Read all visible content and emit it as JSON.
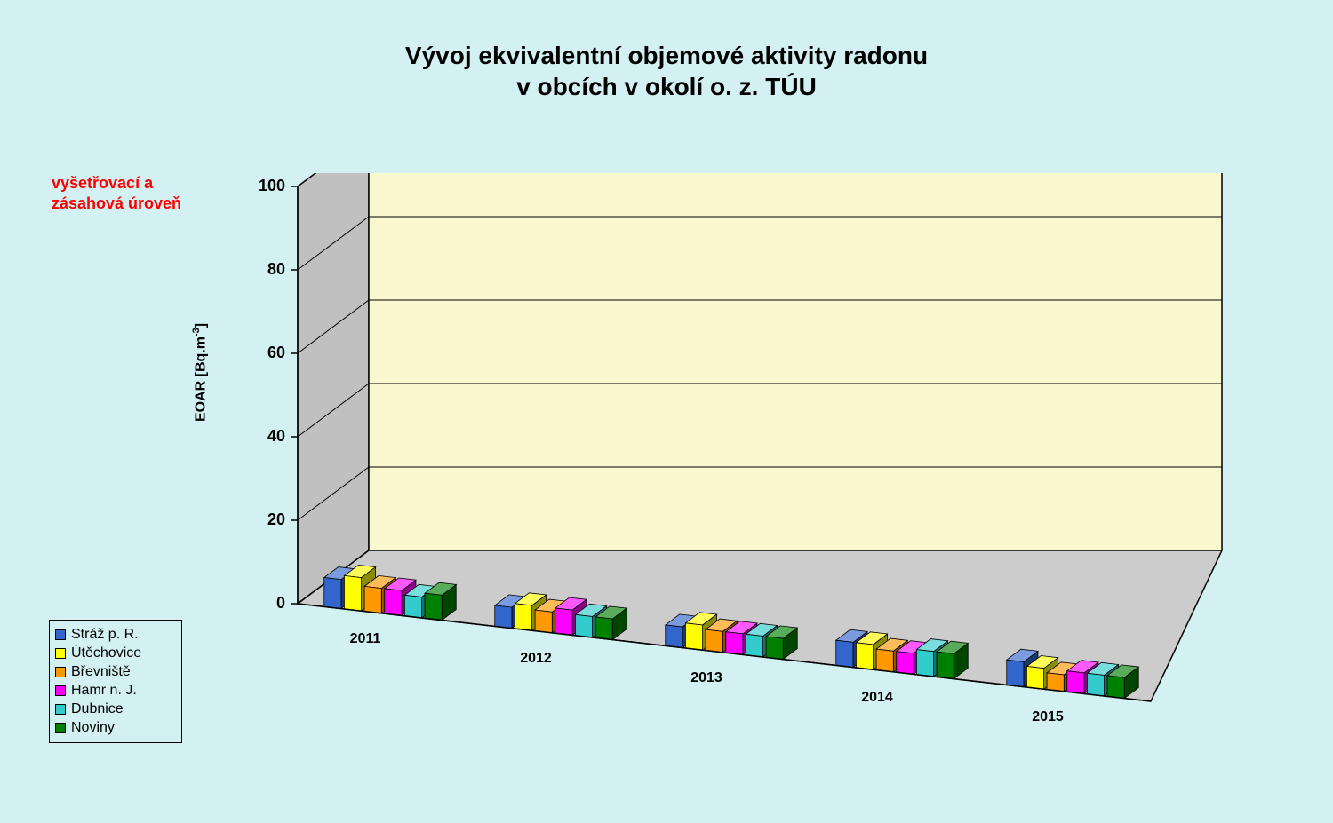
{
  "title_line1": "Vývoj ekvivalentní objemové aktivity radonu",
  "title_line2": "v obcích v okolí o. z. TÚU",
  "annotation_line1": "vyšetřovací a",
  "annotation_line2": "zásahová úroveň",
  "ylabel_main": "EOAR [Bq.m",
  "ylabel_sup": "-3",
  "ylabel_close": "]",
  "chart": {
    "type": "bar-3d",
    "ylim": [
      0,
      100
    ],
    "ytick_step": 20,
    "yticks": [
      0,
      20,
      40,
      60,
      80,
      100
    ],
    "categories": [
      "2011",
      "2012",
      "2013",
      "2014",
      "2015"
    ],
    "series": [
      {
        "name": "Stráž p. R.",
        "color": "#3366cc",
        "values": [
          7,
          5,
          5,
          6,
          6
        ]
      },
      {
        "name": "Útěchovice",
        "color": "#ffff00",
        "values": [
          8,
          6,
          6,
          6,
          5
        ]
      },
      {
        "name": "Břevniště",
        "color": "#ff9900",
        "values": [
          6,
          5,
          5,
          5,
          4
        ]
      },
      {
        "name": "Hamr n. J.",
        "color": "#ff00ff",
        "values": [
          6,
          6,
          5,
          5,
          5
        ]
      },
      {
        "name": "Dubnice",
        "color": "#33cccc",
        "values": [
          5,
          5,
          5,
          6,
          5
        ]
      },
      {
        "name": "Noviny",
        "color": "#008000",
        "values": [
          6,
          5,
          5,
          6,
          5
        ]
      }
    ],
    "background_color": "#d3f1f2",
    "wall_color": "#f9f8cf",
    "wall_side_color": "#c0c0c0",
    "floor_color": "#cccccc",
    "grid_color": "#000000",
    "title_fontsize": 28,
    "axis_fontsize": 18,
    "legend_fontsize": 16
  }
}
